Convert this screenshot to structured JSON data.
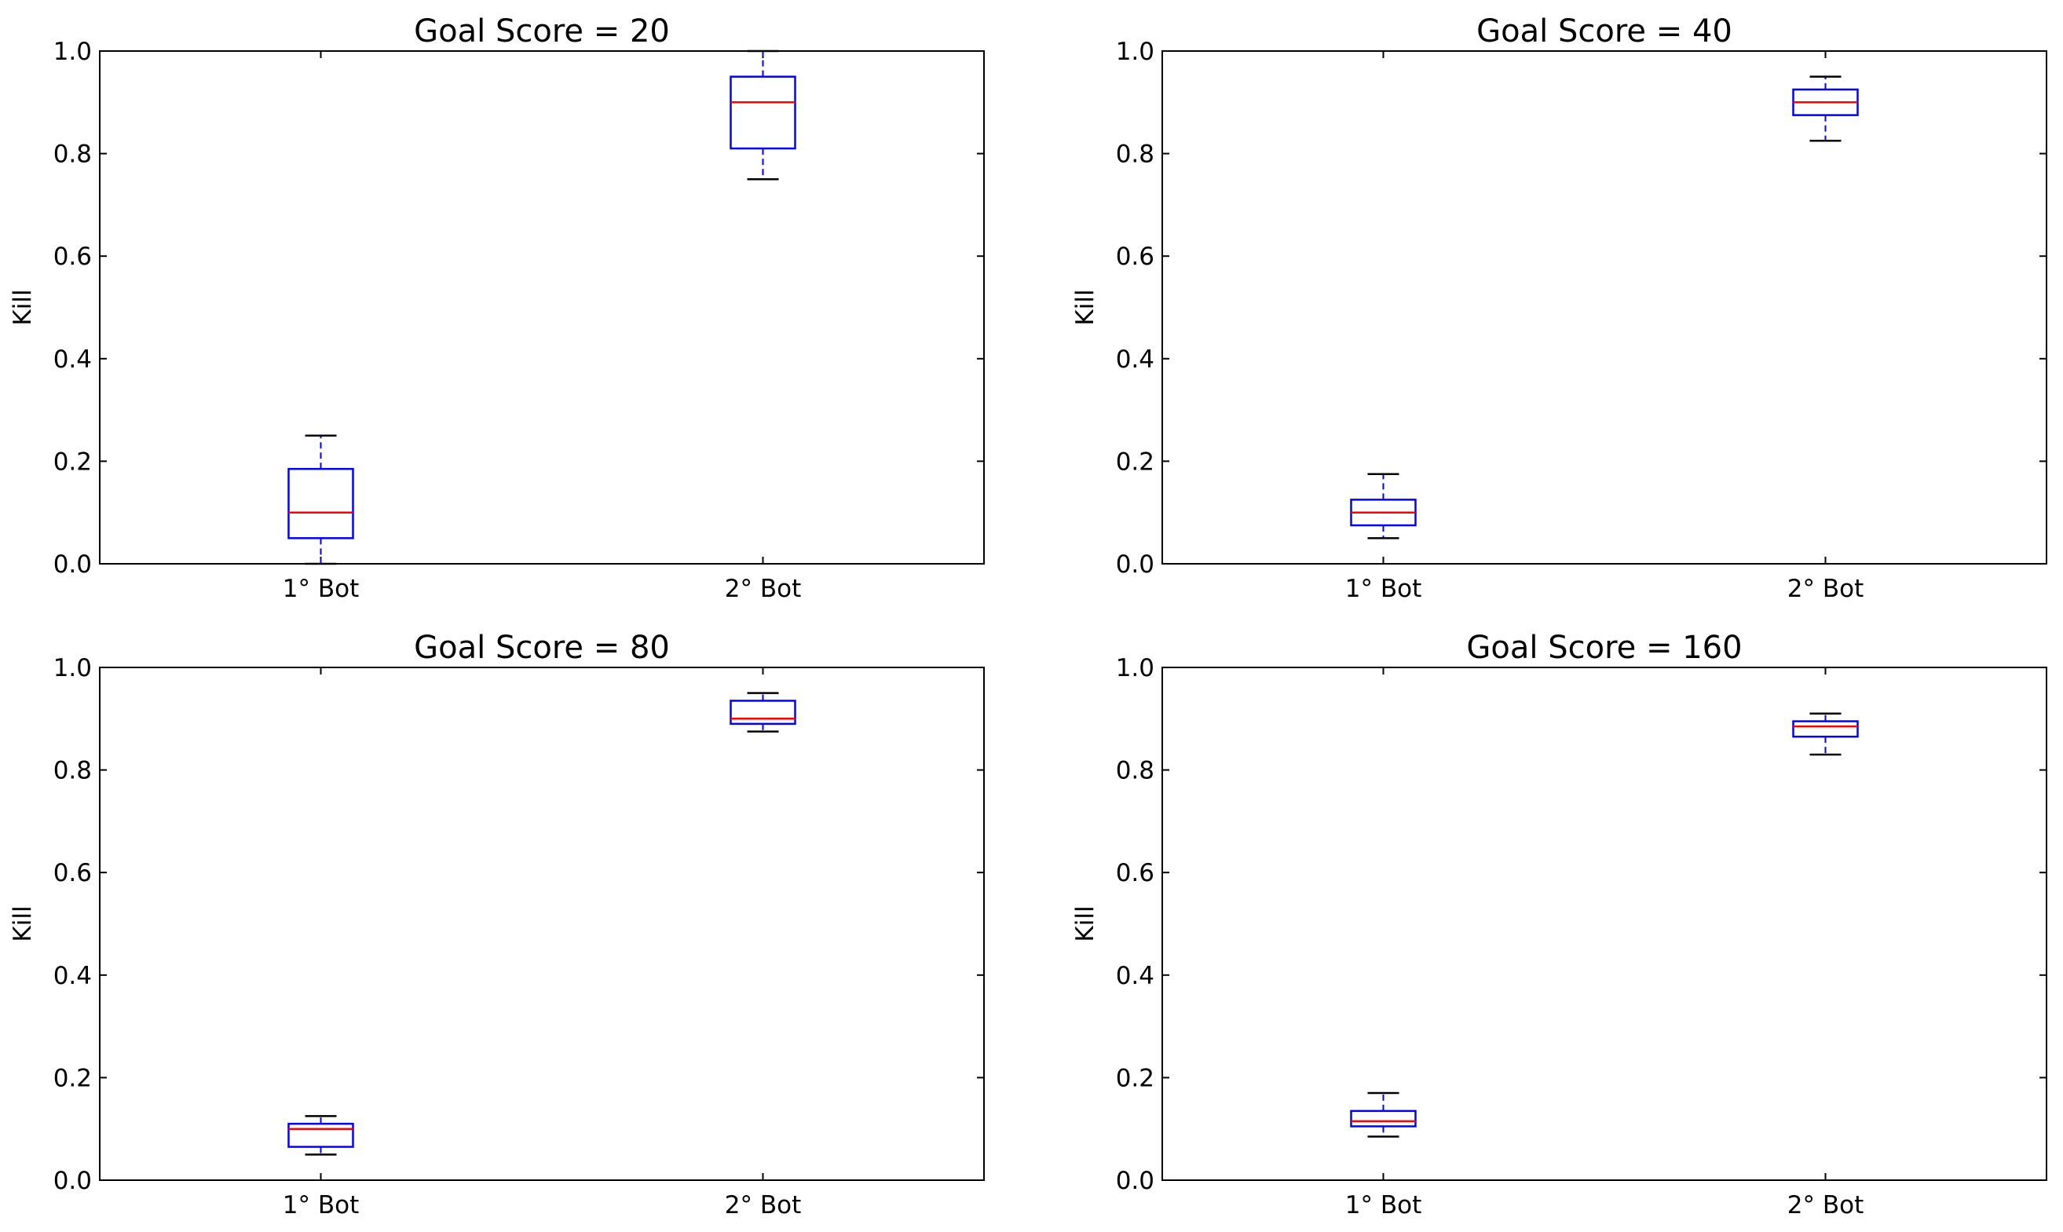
{
  "chart_data": [
    {
      "type": "box",
      "title": "Goal Score = 20",
      "ylabel": "Kill",
      "ylim": [
        0,
        1
      ],
      "yticks": [
        "0.0",
        "0.2",
        "0.4",
        "0.6",
        "0.8",
        "1.0"
      ],
      "categories": [
        "1° Bot",
        "2° Bot"
      ],
      "boxes": [
        {
          "min": 0.0,
          "q1": 0.05,
          "median": 0.1,
          "q3": 0.185,
          "max": 0.25
        },
        {
          "min": 0.75,
          "q1": 0.81,
          "median": 0.9,
          "q3": 0.95,
          "max": 1.0
        }
      ]
    },
    {
      "type": "box",
      "title": "Goal Score = 40",
      "ylabel": "Kill",
      "ylim": [
        0,
        1
      ],
      "yticks": [
        "0.0",
        "0.2",
        "0.4",
        "0.6",
        "0.8",
        "1.0"
      ],
      "categories": [
        "1° Bot",
        "2° Bot"
      ],
      "boxes": [
        {
          "min": 0.05,
          "q1": 0.075,
          "median": 0.1,
          "q3": 0.125,
          "max": 0.175
        },
        {
          "min": 0.825,
          "q1": 0.875,
          "median": 0.9,
          "q3": 0.925,
          "max": 0.95
        }
      ]
    },
    {
      "type": "box",
      "title": "Goal Score = 80",
      "ylabel": "Kill",
      "ylim": [
        0,
        1
      ],
      "yticks": [
        "0.0",
        "0.2",
        "0.4",
        "0.6",
        "0.8",
        "1.0"
      ],
      "categories": [
        "1° Bot",
        "2° Bot"
      ],
      "boxes": [
        {
          "min": 0.05,
          "q1": 0.065,
          "median": 0.1,
          "q3": 0.11,
          "max": 0.125
        },
        {
          "min": 0.875,
          "q1": 0.89,
          "median": 0.9,
          "q3": 0.935,
          "max": 0.95
        }
      ]
    },
    {
      "type": "box",
      "title": "Goal Score = 160",
      "ylabel": "Kill",
      "ylim": [
        0,
        1
      ],
      "yticks": [
        "0.0",
        "0.2",
        "0.4",
        "0.6",
        "0.8",
        "1.0"
      ],
      "categories": [
        "1° Bot",
        "2° Bot"
      ],
      "boxes": [
        {
          "min": 0.085,
          "q1": 0.105,
          "median": 0.115,
          "q3": 0.135,
          "max": 0.17
        },
        {
          "min": 0.83,
          "q1": 0.865,
          "median": 0.885,
          "q3": 0.895,
          "max": 0.91
        }
      ]
    }
  ],
  "colors": {
    "box": "#0000ff",
    "median": "#ff0000",
    "cap": "#000000",
    "axes": "#000000"
  }
}
